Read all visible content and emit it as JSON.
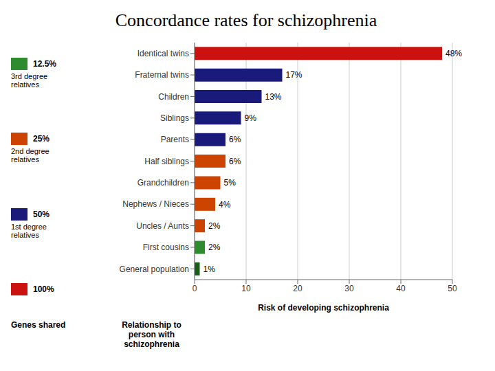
{
  "chart_data": {
    "type": "bar",
    "orientation": "horizontal",
    "title": "Concordance rates for schizophrenia",
    "categories": [
      "General population",
      "First cousins",
      "Uncles / Aunts",
      "Nephews / Nieces",
      "Grandchildren",
      "Half siblings",
      "Parents",
      "Siblings",
      "Children",
      "Fraternal twins",
      "Identical twins"
    ],
    "values": [
      1,
      2,
      2,
      4,
      5,
      6,
      6,
      9,
      13,
      17,
      48
    ],
    "value_labels": [
      "1%",
      "2%",
      "2%",
      "4%",
      "5%",
      "6%",
      "6%",
      "9%",
      "13%",
      "17%",
      "48%"
    ],
    "data_labels": true,
    "colors": [
      "#1a5c1a",
      "#2e8b2e",
      "#cc4400",
      "#cc4400",
      "#cc4400",
      "#cc4400",
      "#1a1a7a",
      "#1a1a7a",
      "#1a1a7a",
      "#1a1a7a",
      "#cc1111"
    ],
    "xlim": [
      0,
      50
    ],
    "xticks": [
      0,
      10,
      20,
      30,
      40,
      50
    ],
    "xlabel": "Risk of developing schizophrenia",
    "ylabel": "Relationship to\nperson with\nschizophrenia",
    "grid": true,
    "legend_title": "Genes shared",
    "legend_items": [
      {
        "label": "12.5%",
        "description": "3rd degree\nrelatives",
        "color": "#2e8b2e"
      },
      {
        "label": "25%",
        "description": "2nd degree\nrelatives",
        "color": "#cc4400"
      },
      {
        "label": "50%",
        "description": "1st degree\nrelatives",
        "color": "#1a1a7a"
      },
      {
        "label": "100%",
        "color": "#cc1111"
      }
    ]
  }
}
